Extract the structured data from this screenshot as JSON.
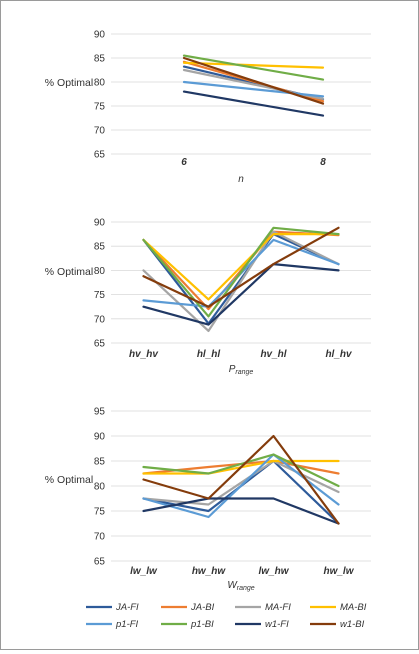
{
  "chart_data": [
    {
      "type": "line",
      "ylabel": "% Optimal",
      "xlabel": "n",
      "xlabel_sub": "",
      "categories": [
        "6",
        "8"
      ],
      "ylim": [
        65,
        90
      ],
      "yticks": [
        65,
        70,
        75,
        80,
        85,
        90
      ],
      "grid": true,
      "series": [
        {
          "name": "JA-FI",
          "color": "#2e5b9a",
          "values": [
            83.2,
            76.4
          ]
        },
        {
          "name": "JA-BI",
          "color": "#ed7d31",
          "values": [
            84.2,
            76.0
          ]
        },
        {
          "name": "MA-FI",
          "color": "#a5a5a5",
          "values": [
            82.5,
            76.5
          ]
        },
        {
          "name": "MA-BI",
          "color": "#ffc000",
          "values": [
            84.0,
            83.0
          ]
        },
        {
          "name": "p1-FI",
          "color": "#5b9bd5",
          "values": [
            80.0,
            77.0
          ]
        },
        {
          "name": "p1-BI",
          "color": "#70ad47",
          "values": [
            85.5,
            80.5
          ]
        },
        {
          "name": "w1-FI",
          "color": "#203864",
          "values": [
            78.0,
            73.0
          ]
        },
        {
          "name": "w1-BI",
          "color": "#843c0c",
          "values": [
            85.0,
            75.5
          ]
        }
      ]
    },
    {
      "type": "line",
      "ylabel": "% Optimal",
      "xlabel": "P",
      "xlabel_sub": "range",
      "categories": [
        "hv_hv",
        "hl_hl",
        "hv_hl",
        "hl_hv"
      ],
      "ylim": [
        65,
        90
      ],
      "yticks": [
        65,
        70,
        75,
        80,
        85,
        90
      ],
      "grid": true,
      "series": [
        {
          "name": "JA-FI",
          "color": "#2e5b9a",
          "values": [
            86.3,
            69.0,
            87.5,
            81.3
          ]
        },
        {
          "name": "JA-BI",
          "color": "#ed7d31",
          "values": [
            86.3,
            72.0,
            88.0,
            87.3
          ]
        },
        {
          "name": "MA-FI",
          "color": "#a5a5a5",
          "values": [
            80.0,
            67.5,
            88.0,
            81.3
          ]
        },
        {
          "name": "MA-BI",
          "color": "#ffc000",
          "values": [
            86.3,
            74.0,
            87.5,
            87.5
          ]
        },
        {
          "name": "p1-FI",
          "color": "#5b9bd5",
          "values": [
            73.8,
            72.5,
            86.3,
            81.3
          ]
        },
        {
          "name": "p1-BI",
          "color": "#70ad47",
          "values": [
            86.3,
            70.5,
            88.8,
            87.5
          ]
        },
        {
          "name": "w1-FI",
          "color": "#203864",
          "values": [
            72.5,
            68.8,
            81.3,
            80.0
          ]
        },
        {
          "name": "w1-BI",
          "color": "#843c0c",
          "values": [
            78.8,
            72.5,
            81.3,
            88.8
          ]
        }
      ]
    },
    {
      "type": "line",
      "ylabel": "% Optimal",
      "xlabel": "W",
      "xlabel_sub": "range",
      "categories": [
        "lw_lw",
        "hw_hw",
        "lw_hw",
        "hw_lw"
      ],
      "ylim": [
        65,
        95
      ],
      "yticks": [
        65,
        70,
        75,
        80,
        85,
        90,
        95
      ],
      "grid": true,
      "series": [
        {
          "name": "JA-FI",
          "color": "#2e5b9a",
          "values": [
            77.5,
            75.0,
            85.0,
            72.5
          ]
        },
        {
          "name": "JA-BI",
          "color": "#ed7d31",
          "values": [
            82.5,
            83.8,
            85.0,
            82.5
          ]
        },
        {
          "name": "MA-FI",
          "color": "#a5a5a5",
          "values": [
            77.5,
            76.3,
            85.0,
            78.8
          ]
        },
        {
          "name": "MA-BI",
          "color": "#ffc000",
          "values": [
            82.5,
            82.5,
            85.0,
            85.0
          ]
        },
        {
          "name": "p1-FI",
          "color": "#5b9bd5",
          "values": [
            77.5,
            73.8,
            86.3,
            76.3
          ]
        },
        {
          "name": "p1-BI",
          "color": "#70ad47",
          "values": [
            83.8,
            82.5,
            86.3,
            80.0
          ]
        },
        {
          "name": "w1-FI",
          "color": "#203864",
          "values": [
            75.0,
            77.5,
            77.5,
            72.5
          ]
        },
        {
          "name": "w1-BI",
          "color": "#843c0c",
          "values": [
            81.3,
            77.5,
            90.0,
            72.5
          ]
        }
      ]
    }
  ],
  "legend": {
    "placement": "bottom",
    "items": [
      {
        "name": "JA-FI",
        "color": "#2e5b9a"
      },
      {
        "name": "JA-BI",
        "color": "#ed7d31"
      },
      {
        "name": "MA-FI",
        "color": "#a5a5a5"
      },
      {
        "name": "MA-BI",
        "color": "#ffc000"
      },
      {
        "name": "p1-FI",
        "color": "#5b9bd5"
      },
      {
        "name": "p1-BI",
        "color": "#70ad47"
      },
      {
        "name": "w1-FI",
        "color": "#203864"
      },
      {
        "name": "w1-BI",
        "color": "#843c0c"
      }
    ]
  }
}
